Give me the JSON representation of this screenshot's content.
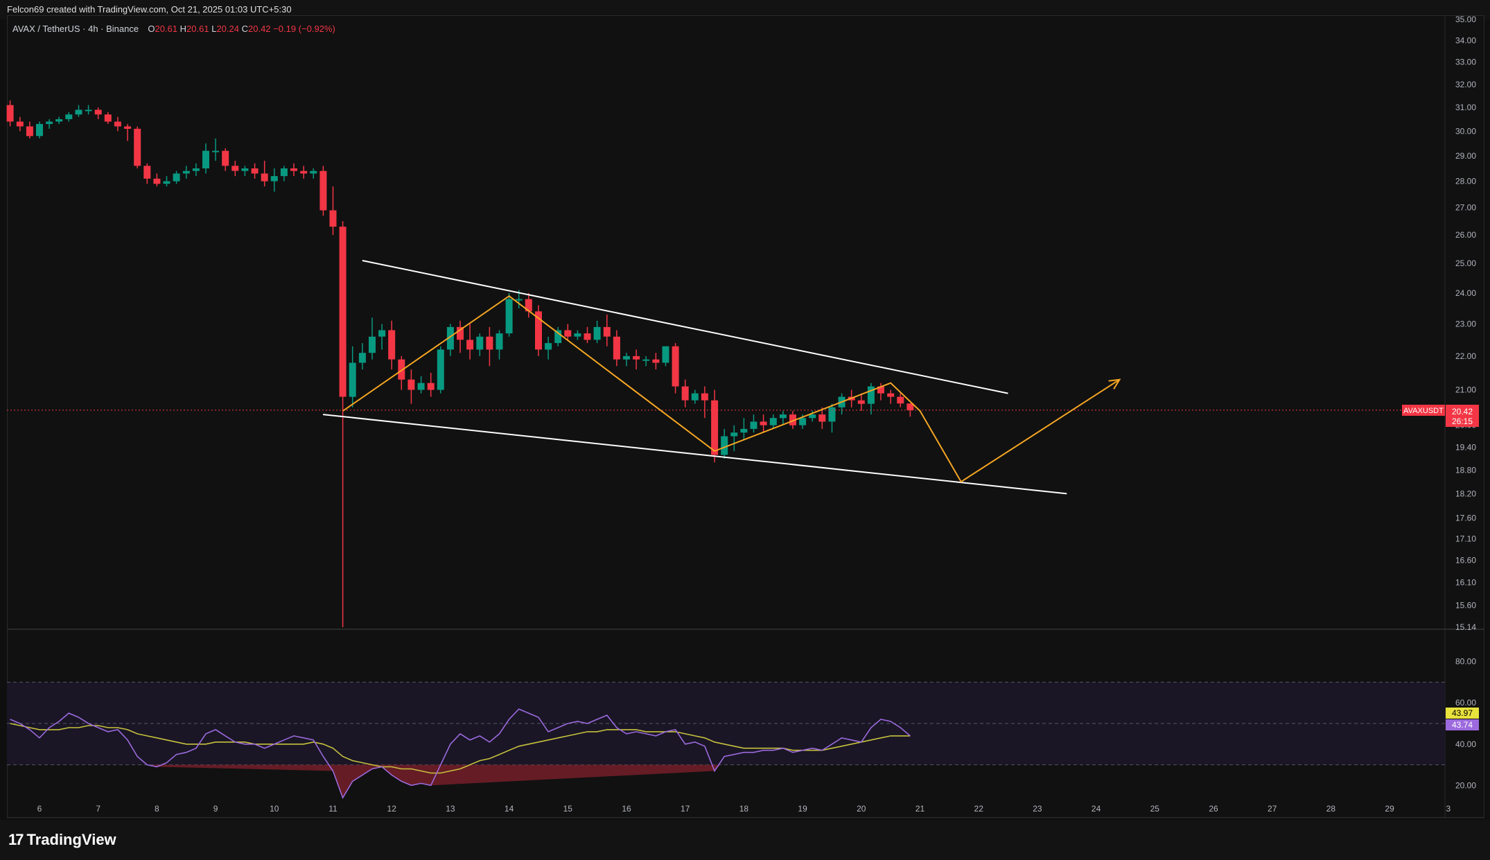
{
  "header": {
    "credit": "Felcon69 created with TradingView.com, Oct 21, 2025 01:03 UTC+5:30"
  },
  "legend": {
    "symbol": "AVAX / TetherUS · 4h · Binance",
    "open_label": "O",
    "open": "20.61",
    "high_label": "H",
    "high": "20.61",
    "low_label": "L",
    "low": "20.24",
    "close_label": "C",
    "close": "20.42",
    "change": "−0.19 (−0.92%)"
  },
  "price_tag": {
    "symbol": "AVAXUSDT",
    "price": "20.42",
    "countdown": "26:15"
  },
  "rsi_tags": {
    "ma": "43.97",
    "rsi": "43.74"
  },
  "footer": {
    "brand": "TradingView"
  },
  "colors": {
    "up": "#089981",
    "down": "#f23645",
    "rsi": "#9c6ade",
    "rsi_ma": "#c7c23d",
    "pattern": "#f5a623",
    "channel": "#ffffff"
  },
  "chart_data": [
    {
      "type": "candlestick",
      "y_scale": "log",
      "price_axis_ticks": [
        "35.00",
        "34.00",
        "33.00",
        "32.00",
        "31.00",
        "30.00",
        "29.00",
        "28.00",
        "27.00",
        "26.00",
        "25.00",
        "24.00",
        "23.00",
        "22.00",
        "21.00",
        "20.00",
        "19.40",
        "18.80",
        "18.20",
        "17.60",
        "17.10",
        "16.60",
        "16.10",
        "15.60",
        "15.14"
      ],
      "time_axis_ticks": [
        "6",
        "7",
        "8",
        "9",
        "10",
        "11",
        "12",
        "13",
        "14",
        "15",
        "16",
        "17",
        "18",
        "19",
        "20",
        "21",
        "22",
        "23",
        "24",
        "25",
        "26",
        "27",
        "28",
        "29",
        "3"
      ],
      "candles": [
        {
          "t": 5.5,
          "o": 31.1,
          "h": 31.3,
          "c": 30.4,
          "l": 30.2
        },
        {
          "t": 5.667,
          "o": 30.4,
          "h": 30.6,
          "c": 30.2,
          "l": 30.0
        },
        {
          "t": 5.833,
          "o": 30.2,
          "h": 30.4,
          "c": 29.8,
          "l": 29.7
        },
        {
          "t": 6.0,
          "o": 29.8,
          "h": 30.4,
          "c": 30.3,
          "l": 29.7
        },
        {
          "t": 6.167,
          "o": 30.3,
          "h": 30.5,
          "c": 30.4,
          "l": 30.1
        },
        {
          "t": 6.333,
          "o": 30.4,
          "h": 30.6,
          "c": 30.5,
          "l": 30.3
        },
        {
          "t": 6.5,
          "o": 30.5,
          "h": 30.8,
          "c": 30.7,
          "l": 30.4
        },
        {
          "t": 6.667,
          "o": 30.7,
          "h": 31.1,
          "c": 30.9,
          "l": 30.6
        },
        {
          "t": 6.833,
          "o": 30.9,
          "h": 31.1,
          "c": 30.9,
          "l": 30.7
        },
        {
          "t": 7.0,
          "o": 30.9,
          "h": 31.0,
          "c": 30.7,
          "l": 30.5
        },
        {
          "t": 7.167,
          "o": 30.7,
          "h": 30.8,
          "c": 30.4,
          "l": 30.3
        },
        {
          "t": 7.333,
          "o": 30.4,
          "h": 30.6,
          "c": 30.2,
          "l": 30.0
        },
        {
          "t": 7.5,
          "o": 30.2,
          "h": 30.3,
          "c": 30.1,
          "l": 29.6
        },
        {
          "t": 7.667,
          "o": 30.1,
          "h": 30.2,
          "c": 28.6,
          "l": 28.5
        },
        {
          "t": 7.833,
          "o": 28.6,
          "h": 28.7,
          "c": 28.1,
          "l": 27.9
        },
        {
          "t": 8.0,
          "o": 28.1,
          "h": 28.3,
          "c": 27.9,
          "l": 27.8
        },
        {
          "t": 8.167,
          "o": 27.9,
          "h": 28.2,
          "c": 28.0,
          "l": 27.8
        },
        {
          "t": 8.333,
          "o": 28.0,
          "h": 28.4,
          "c": 28.3,
          "l": 27.9
        },
        {
          "t": 8.5,
          "o": 28.3,
          "h": 28.6,
          "c": 28.4,
          "l": 28.1
        },
        {
          "t": 8.667,
          "o": 28.4,
          "h": 28.7,
          "c": 28.5,
          "l": 28.2
        },
        {
          "t": 8.833,
          "o": 28.5,
          "h": 29.5,
          "c": 29.2,
          "l": 28.3
        },
        {
          "t": 9.0,
          "o": 29.2,
          "h": 29.7,
          "c": 29.2,
          "l": 28.8
        },
        {
          "t": 9.167,
          "o": 29.2,
          "h": 29.3,
          "c": 28.6,
          "l": 28.4
        },
        {
          "t": 9.333,
          "o": 28.6,
          "h": 28.8,
          "c": 28.4,
          "l": 28.2
        },
        {
          "t": 9.5,
          "o": 28.4,
          "h": 28.6,
          "c": 28.5,
          "l": 28.2
        },
        {
          "t": 9.667,
          "o": 28.5,
          "h": 28.7,
          "c": 28.3,
          "l": 28.1
        },
        {
          "t": 9.833,
          "o": 28.3,
          "h": 28.8,
          "c": 28.0,
          "l": 27.8
        },
        {
          "t": 10.0,
          "o": 28.0,
          "h": 28.5,
          "c": 28.2,
          "l": 27.6
        },
        {
          "t": 10.167,
          "o": 28.2,
          "h": 28.6,
          "c": 28.5,
          "l": 28.0
        },
        {
          "t": 10.333,
          "o": 28.5,
          "h": 28.7,
          "c": 28.4,
          "l": 28.2
        },
        {
          "t": 10.5,
          "o": 28.4,
          "h": 28.6,
          "c": 28.3,
          "l": 28.1
        },
        {
          "t": 10.667,
          "o": 28.3,
          "h": 28.5,
          "c": 28.4,
          "l": 28.1
        },
        {
          "t": 10.833,
          "o": 28.4,
          "h": 28.6,
          "c": 26.9,
          "l": 26.7
        },
        {
          "t": 11.0,
          "o": 26.9,
          "h": 27.8,
          "c": 26.3,
          "l": 26.0
        },
        {
          "t": 11.167,
          "o": 26.3,
          "h": 26.5,
          "c": 20.8,
          "l": 15.14
        },
        {
          "t": 11.333,
          "o": 20.8,
          "h": 22.3,
          "c": 21.8,
          "l": 20.5
        },
        {
          "t": 11.5,
          "o": 21.8,
          "h": 22.4,
          "c": 22.1,
          "l": 21.6
        },
        {
          "t": 11.667,
          "o": 22.1,
          "h": 23.2,
          "c": 22.6,
          "l": 21.9
        },
        {
          "t": 11.833,
          "o": 22.6,
          "h": 23.0,
          "c": 22.8,
          "l": 22.2
        },
        {
          "t": 12.0,
          "o": 22.8,
          "h": 23.1,
          "c": 21.9,
          "l": 21.6
        },
        {
          "t": 12.167,
          "o": 21.9,
          "h": 22.0,
          "c": 21.3,
          "l": 21.0
        },
        {
          "t": 12.333,
          "o": 21.3,
          "h": 21.6,
          "c": 21.0,
          "l": 20.6
        },
        {
          "t": 12.5,
          "o": 21.0,
          "h": 21.4,
          "c": 21.2,
          "l": 20.9
        },
        {
          "t": 12.667,
          "o": 21.2,
          "h": 21.5,
          "c": 21.0,
          "l": 20.8
        },
        {
          "t": 12.833,
          "o": 21.0,
          "h": 22.3,
          "c": 22.2,
          "l": 20.9
        },
        {
          "t": 13.0,
          "o": 22.2,
          "h": 23.0,
          "c": 22.9,
          "l": 22.0
        },
        {
          "t": 13.167,
          "o": 22.9,
          "h": 23.1,
          "c": 22.5,
          "l": 22.1
        },
        {
          "t": 13.333,
          "o": 22.5,
          "h": 23.0,
          "c": 22.2,
          "l": 21.9
        },
        {
          "t": 13.5,
          "o": 22.2,
          "h": 22.7,
          "c": 22.6,
          "l": 22.0
        },
        {
          "t": 13.667,
          "o": 22.6,
          "h": 22.9,
          "c": 22.2,
          "l": 21.7
        },
        {
          "t": 13.833,
          "o": 22.2,
          "h": 22.8,
          "c": 22.7,
          "l": 21.9
        },
        {
          "t": 14.0,
          "o": 22.7,
          "h": 24.0,
          "c": 23.8,
          "l": 22.6
        },
        {
          "t": 14.167,
          "o": 23.8,
          "h": 24.1,
          "c": 23.8,
          "l": 23.5
        },
        {
          "t": 14.333,
          "o": 23.8,
          "h": 24.0,
          "c": 23.4,
          "l": 23.2
        },
        {
          "t": 14.5,
          "o": 23.4,
          "h": 23.6,
          "c": 22.2,
          "l": 22.0
        },
        {
          "t": 14.667,
          "o": 22.2,
          "h": 22.6,
          "c": 22.4,
          "l": 21.9
        },
        {
          "t": 14.833,
          "o": 22.4,
          "h": 22.9,
          "c": 22.8,
          "l": 22.3
        },
        {
          "t": 15.0,
          "o": 22.8,
          "h": 23.0,
          "c": 22.6,
          "l": 22.5
        },
        {
          "t": 15.167,
          "o": 22.6,
          "h": 22.8,
          "c": 22.7,
          "l": 22.5
        },
        {
          "t": 15.333,
          "o": 22.7,
          "h": 22.9,
          "c": 22.5,
          "l": 22.4
        },
        {
          "t": 15.5,
          "o": 22.5,
          "h": 23.1,
          "c": 22.9,
          "l": 22.4
        },
        {
          "t": 15.667,
          "o": 22.9,
          "h": 23.3,
          "c": 22.6,
          "l": 22.3
        },
        {
          "t": 15.833,
          "o": 22.6,
          "h": 22.8,
          "c": 21.9,
          "l": 21.7
        },
        {
          "t": 16.0,
          "o": 21.9,
          "h": 22.1,
          "c": 22.0,
          "l": 21.7
        },
        {
          "t": 16.167,
          "o": 22.0,
          "h": 22.2,
          "c": 21.9,
          "l": 21.6
        },
        {
          "t": 16.333,
          "o": 21.9,
          "h": 22.0,
          "c": 21.9,
          "l": 21.7
        },
        {
          "t": 16.5,
          "o": 21.9,
          "h": 22.1,
          "c": 21.8,
          "l": 21.6
        },
        {
          "t": 16.667,
          "o": 21.8,
          "h": 22.3,
          "c": 22.3,
          "l": 21.7
        },
        {
          "t": 16.833,
          "o": 22.3,
          "h": 22.4,
          "c": 21.1,
          "l": 20.9
        },
        {
          "t": 17.0,
          "o": 21.1,
          "h": 21.3,
          "c": 20.7,
          "l": 20.5
        },
        {
          "t": 17.167,
          "o": 20.7,
          "h": 21.0,
          "c": 20.9,
          "l": 20.6
        },
        {
          "t": 17.333,
          "o": 20.9,
          "h": 21.1,
          "c": 20.7,
          "l": 20.2
        },
        {
          "t": 17.5,
          "o": 20.7,
          "h": 21.0,
          "c": 19.2,
          "l": 19.0
        },
        {
          "t": 17.667,
          "o": 19.2,
          "h": 19.9,
          "c": 19.7,
          "l": 19.1
        },
        {
          "t": 17.833,
          "o": 19.7,
          "h": 20.0,
          "c": 19.8,
          "l": 19.3
        },
        {
          "t": 18.0,
          "o": 19.8,
          "h": 20.2,
          "c": 19.9,
          "l": 19.6
        },
        {
          "t": 18.167,
          "o": 19.9,
          "h": 20.3,
          "c": 20.1,
          "l": 19.8
        },
        {
          "t": 18.333,
          "o": 20.1,
          "h": 20.3,
          "c": 20.0,
          "l": 19.8
        },
        {
          "t": 18.5,
          "o": 20.0,
          "h": 20.3,
          "c": 20.2,
          "l": 19.9
        },
        {
          "t": 18.667,
          "o": 20.2,
          "h": 20.4,
          "c": 20.3,
          "l": 20.0
        },
        {
          "t": 18.833,
          "o": 20.3,
          "h": 20.4,
          "c": 20.0,
          "l": 19.9
        },
        {
          "t": 19.0,
          "o": 20.0,
          "h": 20.3,
          "c": 20.2,
          "l": 19.9
        },
        {
          "t": 19.167,
          "o": 20.2,
          "h": 20.4,
          "c": 20.3,
          "l": 20.1
        },
        {
          "t": 19.333,
          "o": 20.3,
          "h": 20.5,
          "c": 20.1,
          "l": 19.9
        },
        {
          "t": 19.5,
          "o": 20.1,
          "h": 20.6,
          "c": 20.5,
          "l": 19.8
        },
        {
          "t": 19.667,
          "o": 20.5,
          "h": 20.9,
          "c": 20.8,
          "l": 20.3
        },
        {
          "t": 19.833,
          "o": 20.8,
          "h": 21.0,
          "c": 20.7,
          "l": 20.5
        },
        {
          "t": 20.0,
          "o": 20.7,
          "h": 20.9,
          "c": 20.6,
          "l": 20.4
        },
        {
          "t": 20.167,
          "o": 20.6,
          "h": 21.2,
          "c": 21.1,
          "l": 20.3
        },
        {
          "t": 20.333,
          "o": 21.1,
          "h": 21.2,
          "c": 20.9,
          "l": 20.7
        },
        {
          "t": 20.5,
          "o": 20.9,
          "h": 21.0,
          "c": 20.8,
          "l": 20.6
        },
        {
          "t": 20.667,
          "o": 20.8,
          "h": 20.9,
          "c": 20.61,
          "l": 20.5
        },
        {
          "t": 20.833,
          "o": 20.61,
          "h": 20.61,
          "c": 20.42,
          "l": 20.24
        }
      ],
      "last_price": 20.42,
      "drawings": {
        "channel_upper": [
          {
            "t": 11.5,
            "p": 25.1
          },
          {
            "t": 22.5,
            "p": 20.9
          }
        ],
        "channel_lower": [
          {
            "t": 10.83,
            "p": 20.3
          },
          {
            "t": 23.5,
            "p": 18.2
          }
        ],
        "zigzag": [
          {
            "t": 11.17,
            "p": 20.4
          },
          {
            "t": 14.0,
            "p": 23.9
          },
          {
            "t": 17.5,
            "p": 19.3
          },
          {
            "t": 20.5,
            "p": 21.2
          },
          {
            "t": 21.0,
            "p": 20.4
          },
          {
            "t": 21.7,
            "p": 18.5
          },
          {
            "t": 24.4,
            "p": 21.3
          }
        ]
      }
    },
    {
      "type": "line",
      "name": "RSI",
      "ylim": [
        5,
        95
      ],
      "axis_ticks": [
        "80.00",
        "60.00",
        "40.00",
        "20.00"
      ],
      "bands": {
        "upper": 70,
        "middle": 50,
        "lower": 30
      },
      "x": [
        5.5,
        5.667,
        5.833,
        6.0,
        6.167,
        6.333,
        6.5,
        6.667,
        6.833,
        7.0,
        7.167,
        7.333,
        7.5,
        7.667,
        7.833,
        8.0,
        8.167,
        8.333,
        8.5,
        8.667,
        8.833,
        9.0,
        9.167,
        9.333,
        9.5,
        9.667,
        9.833,
        10.0,
        10.167,
        10.333,
        10.5,
        10.667,
        10.833,
        11.0,
        11.167,
        11.333,
        11.5,
        11.667,
        11.833,
        12.0,
        12.167,
        12.333,
        12.5,
        12.667,
        12.833,
        13.0,
        13.167,
        13.333,
        13.5,
        13.667,
        13.833,
        14.0,
        14.167,
        14.333,
        14.5,
        14.667,
        14.833,
        15.0,
        15.167,
        15.333,
        15.5,
        15.667,
        15.833,
        16.0,
        16.167,
        16.333,
        16.5,
        16.667,
        16.833,
        17.0,
        17.167,
        17.333,
        17.5,
        17.667,
        17.833,
        18.0,
        18.167,
        18.333,
        18.5,
        18.667,
        18.833,
        19.0,
        19.167,
        19.333,
        19.5,
        19.667,
        19.833,
        20.0,
        20.167,
        20.333,
        20.5,
        20.667,
        20.833
      ],
      "series": [
        {
          "values": [
            52,
            50,
            47,
            43,
            48,
            51,
            55,
            53,
            50,
            48,
            46,
            47,
            42,
            34,
            30,
            29,
            31,
            35,
            36,
            38,
            45,
            47,
            44,
            41,
            40,
            40,
            38,
            40,
            42,
            44,
            43,
            42,
            34,
            27,
            14,
            22,
            25,
            28,
            29,
            25,
            22,
            20,
            21,
            20,
            30,
            40,
            45,
            42,
            44,
            41,
            45,
            52,
            57,
            55,
            53,
            46,
            48,
            50,
            51,
            50,
            52,
            54,
            48,
            45,
            46,
            45,
            44,
            46,
            47,
            40,
            41,
            39,
            27,
            34,
            35,
            36,
            36,
            37,
            37,
            38,
            36,
            37,
            38,
            37,
            40,
            43,
            42,
            41,
            48,
            52,
            51,
            48,
            44
          ]
        },
        {
          "values": [
            50,
            49,
            48,
            47,
            47,
            47,
            48,
            48,
            49,
            49,
            48,
            48,
            47,
            45,
            44,
            43,
            42,
            41,
            40,
            40,
            40,
            41,
            41,
            41,
            41,
            40,
            40,
            40,
            40,
            40,
            40,
            41,
            40,
            38,
            34,
            32,
            31,
            30,
            29,
            29,
            28,
            28,
            27,
            26,
            26,
            27,
            28,
            30,
            32,
            33,
            35,
            37,
            39,
            40,
            41,
            42,
            43,
            44,
            45,
            46,
            46,
            47,
            47,
            47,
            47,
            46,
            46,
            46,
            46,
            45,
            44,
            43,
            41,
            40,
            39,
            38,
            38,
            38,
            38,
            38,
            37,
            37,
            37,
            37,
            38,
            39,
            40,
            41,
            42,
            43,
            44,
            44,
            44
          ]
        }
      ]
    }
  ]
}
